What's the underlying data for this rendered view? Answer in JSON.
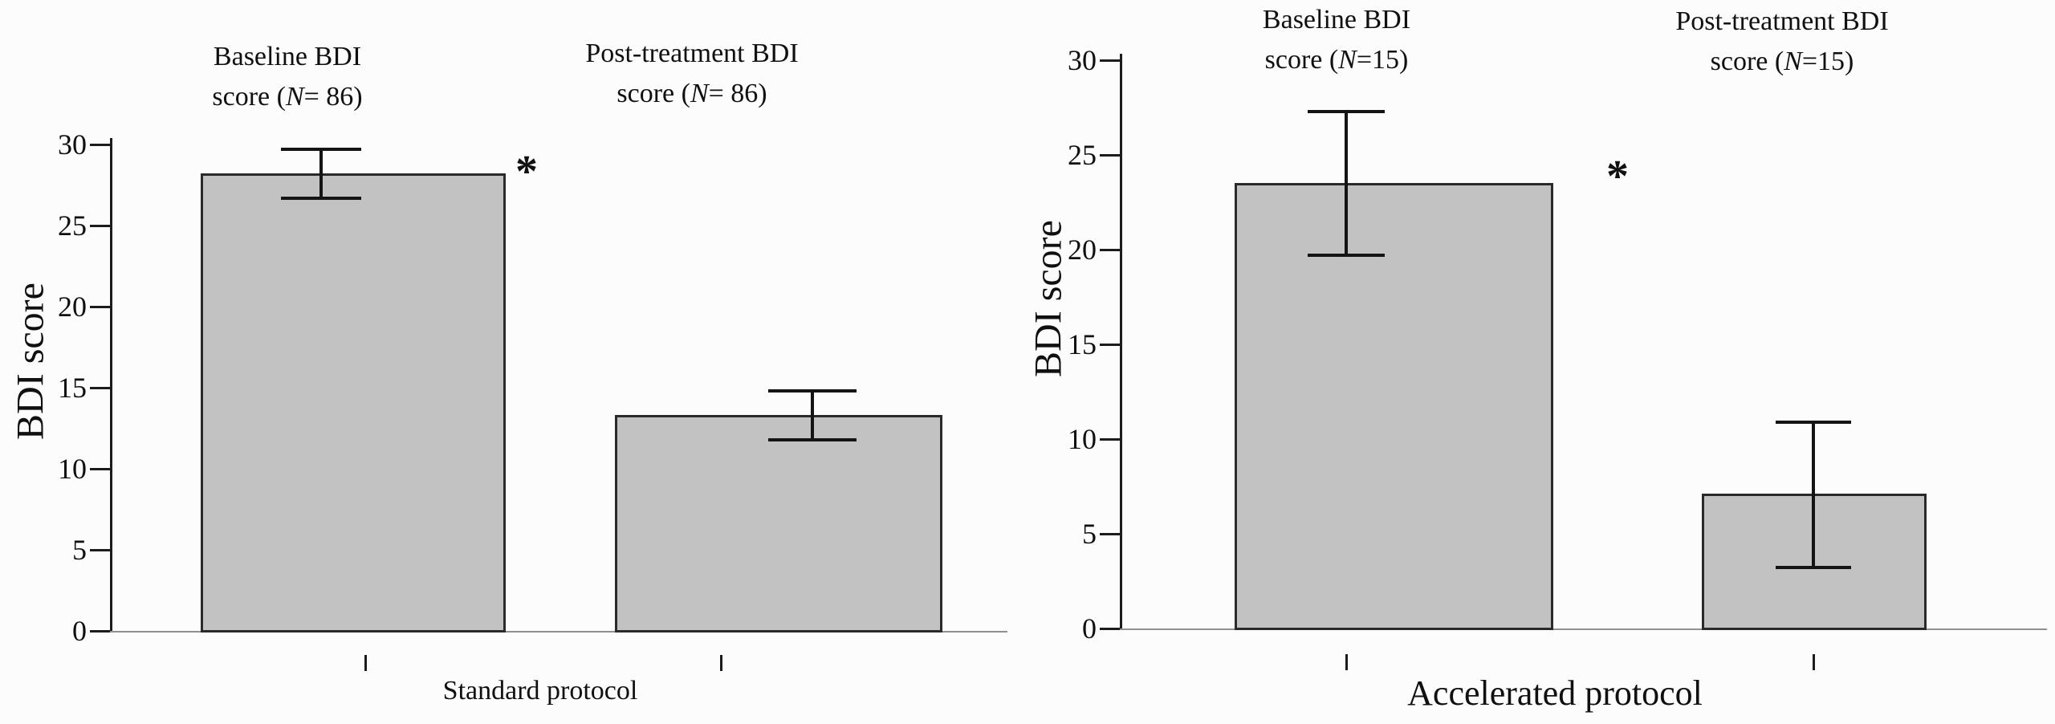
{
  "figure": {
    "background": "#fcfcfc",
    "bar_fill": "#c2c2c2",
    "bar_border": "#2a2a2a",
    "axis_color": "#1c1c1c",
    "x_baseline_color": "#909090",
    "error_bar_color": "#141414",
    "text_color": "#101010"
  },
  "chart_data": [
    {
      "type": "bar",
      "panel": "standard-protocol",
      "xlabel": "Standard protocol",
      "ylabel": "BDI score",
      "ylim": [
        0,
        30
      ],
      "yticks": [
        0,
        5,
        10,
        15,
        20,
        25,
        30
      ],
      "grid": "off",
      "significance_marker": "*",
      "bars": [
        {
          "label": "Baseline BDI score (N= 86)",
          "title_line1": "Baseline BDI",
          "title_line2_prefix": "score (",
          "title_n": "N",
          "title_line2_suffix": "= 86)",
          "value": 28.2,
          "err_low": 26.7,
          "err_high": 29.7
        },
        {
          "label": "Post-treatment BDI score (N= 86)",
          "title_line1": "Post-treatment BDI",
          "title_line2_prefix": "score (",
          "title_n": "N",
          "title_line2_suffix": "= 86)",
          "value": 13.3,
          "err_low": 11.8,
          "err_high": 14.8
        }
      ]
    },
    {
      "type": "bar",
      "panel": "accelerated-protocol",
      "xlabel": "Accelerated protocol",
      "ylabel": "BDI score",
      "ylim": [
        0,
        30
      ],
      "yticks": [
        0,
        5,
        10,
        15,
        20,
        25,
        30
      ],
      "grid": "off",
      "significance_marker": "*",
      "bars": [
        {
          "label": "Baseline BDI score (N=15)",
          "title_line1": "Baseline BDI",
          "title_line2_prefix": "score (",
          "title_n": "N",
          "title_line2_suffix": "=15)",
          "value": 23.5,
          "err_low": 19.7,
          "err_high": 27.3
        },
        {
          "label": "Post-treatment BDI score (N=15)",
          "title_line1": "Post-treatment BDI",
          "title_line2_prefix": "score (",
          "title_n": "N",
          "title_line2_suffix": "=15)",
          "value": 7.1,
          "err_low": 3.2,
          "err_high": 10.9
        }
      ]
    }
  ]
}
